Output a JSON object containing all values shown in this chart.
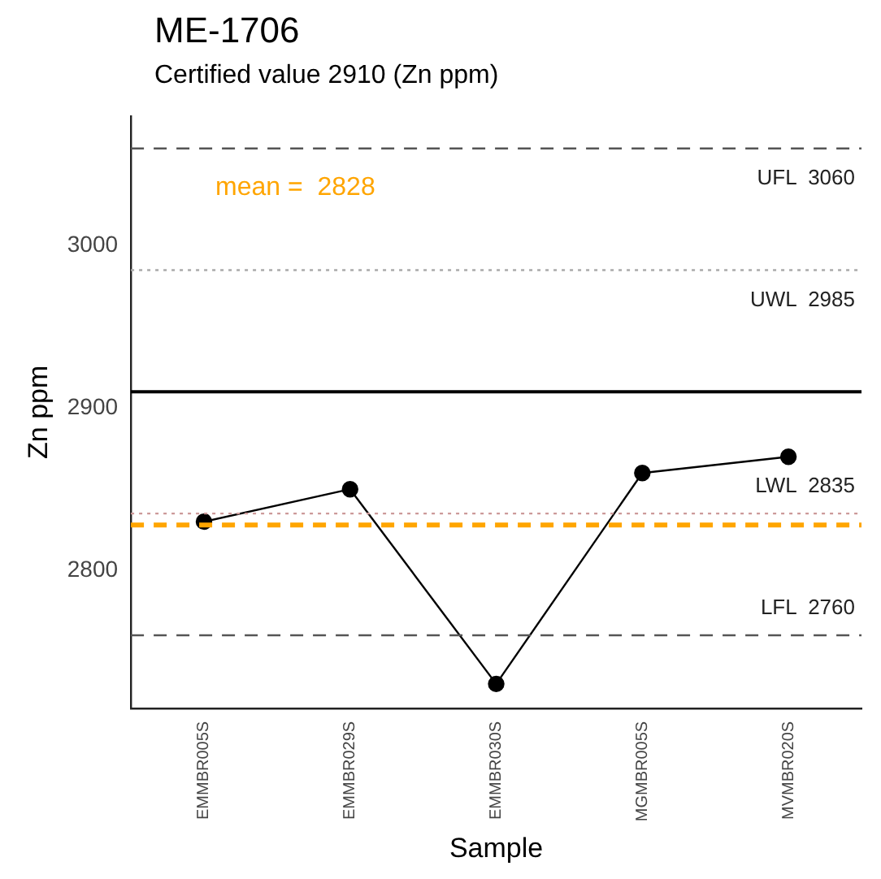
{
  "chart_data": {
    "type": "line",
    "title": "ME-1706",
    "subtitle": "Certified value 2910 (Zn ppm)",
    "xlabel": "Sample",
    "ylabel": "Zn ppm",
    "categories": [
      "EMMBR005S",
      "EMMBR029S",
      "EMMBR030S",
      "MGMBR005S",
      "MVMBR020S"
    ],
    "series": [
      {
        "color": "#000000",
        "values": [
          2830,
          2850,
          2730,
          2860,
          2870
        ]
      }
    ],
    "marker": "circle",
    "line_style": "solid",
    "grid": false,
    "legend": false,
    "ylim": [
      2715,
      3080
    ],
    "yticks": [
      2800,
      2900,
      3000
    ],
    "ref_lines": [
      {
        "axis": "y",
        "value": 3060,
        "label": "UFL  3060",
        "color": "#555555",
        "line_style": "dashed"
      },
      {
        "axis": "y",
        "value": 2985,
        "label": "UWL  2985",
        "color": "#aaaaaa",
        "line_style": "dotted"
      },
      {
        "axis": "y",
        "value": 2910,
        "color": "#000000",
        "line_style": "solid"
      },
      {
        "axis": "y",
        "value": 2835,
        "label": "LWL  2835",
        "color": "#cc9999",
        "line_style": "dotted"
      },
      {
        "axis": "y",
        "value": 2760,
        "label": "LFL  2760",
        "color": "#555555",
        "line_style": "dashed"
      },
      {
        "axis": "y",
        "value": 2828,
        "color": "#ffa500",
        "line_style": "dashed"
      }
    ],
    "annotations": [
      "mean =  2828"
    ]
  }
}
